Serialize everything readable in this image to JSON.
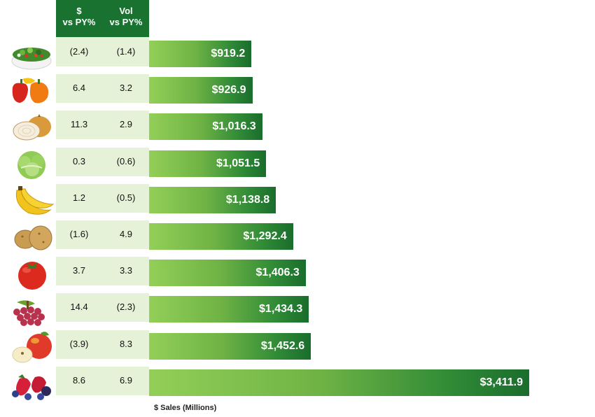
{
  "header": {
    "col1_line1": "$",
    "col1_line2": "vs PY%",
    "col2_line1": "Vol",
    "col2_line2": "vs PY%"
  },
  "chart_data": {
    "type": "bar",
    "orientation": "horizontal",
    "xlabel": "$ Sales (Millions)",
    "ylabel": "",
    "categories": [
      "salad-greens-icon",
      "peppers-icon",
      "onion-icon",
      "lettuce-icon",
      "bananas-icon",
      "potatoes-icon",
      "tomato-icon",
      "grapes-icon",
      "apples-icon",
      "berries-icon"
    ],
    "values": [
      919.2,
      926.9,
      1016.3,
      1051.5,
      1138.8,
      1292.4,
      1406.3,
      1434.3,
      1452.6,
      3411.9
    ],
    "value_labels": [
      "$919.2",
      "$926.9",
      "$1,016.3",
      "$1,051.5",
      "$1,138.8",
      "$1,292.4",
      "$1,406.3",
      "$1,434.3",
      "$1,452.6",
      "$3,411.9"
    ],
    "dollar_vs_py": [
      "(2.4)",
      "6.4",
      "11.3",
      "0.3",
      "1.2",
      "(1.6)",
      "3.7",
      "14.4",
      "(3.9)",
      "8.6"
    ],
    "vol_vs_py": [
      "(1.4)",
      "3.2",
      "2.9",
      "(0.6)",
      "(0.5)",
      "4.9",
      "3.3",
      "(2.3)",
      "8.3",
      "6.9"
    ],
    "xlim": [
      0,
      3411.9
    ],
    "grid": false,
    "colors": {
      "bar_light": "#93cf58",
      "bar_dark": "#1a6d2c",
      "header": "#1a7230",
      "table": "#e5f2d7"
    }
  }
}
